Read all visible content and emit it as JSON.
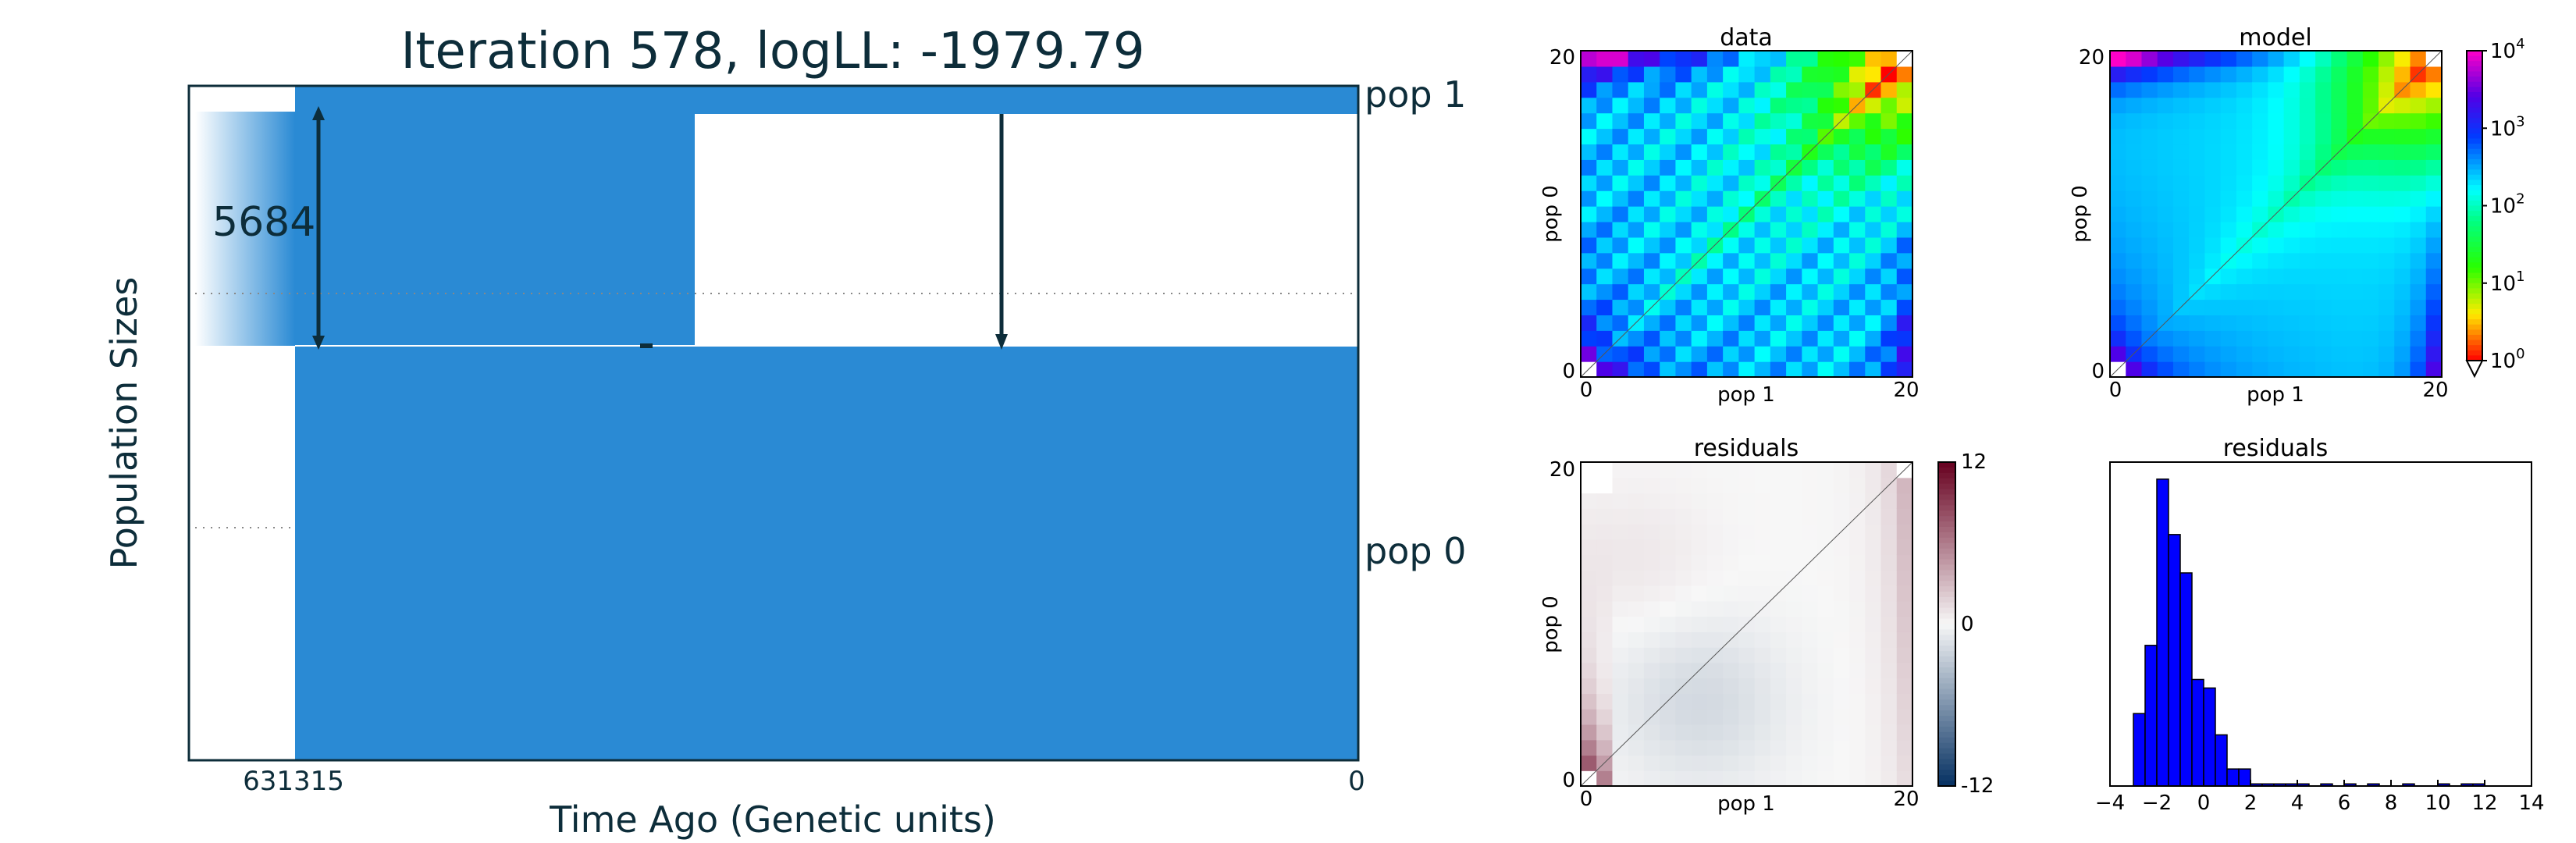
{
  "colors": {
    "pop_fill": "#2a8ad4",
    "arrow": "#0d2d3a",
    "text_dark": "#0d2d3a",
    "hist_bar": "#0000ff"
  },
  "chart_data": [
    {
      "type": "area",
      "title": "Iteration 578, logLL:   -1979.79",
      "xlabel": "Time Ago (Genetic units)",
      "ylabel": "Population Sizes",
      "x_ticks": [
        "631315",
        "0"
      ],
      "series": [
        {
          "name": "pop 1"
        },
        {
          "name": "pop 0"
        }
      ],
      "annotations": [
        "5684"
      ]
    },
    {
      "type": "heatmap",
      "title": "data",
      "xlabel": "pop 1",
      "ylabel": "pop 0",
      "x_ticks": [
        "0",
        "20"
      ],
      "y_ticks": [
        "0",
        "20"
      ],
      "grid_size": 21,
      "scale": "log",
      "colorbar_ticks": [
        {
          "base": "10",
          "exp": "0"
        },
        {
          "base": "10",
          "exp": "1"
        },
        {
          "base": "10",
          "exp": "2"
        },
        {
          "base": "10",
          "exp": "3"
        },
        {
          "base": "10",
          "exp": "4"
        }
      ]
    },
    {
      "type": "heatmap",
      "title": "model",
      "xlabel": "pop 1",
      "ylabel": "pop 0",
      "x_ticks": [
        "0",
        "20"
      ],
      "y_ticks": [
        "0",
        "20"
      ],
      "grid_size": 21,
      "scale": "log"
    },
    {
      "type": "heatmap",
      "title": "residuals",
      "xlabel": "pop 1",
      "ylabel": "pop 0",
      "x_ticks": [
        "0",
        "20"
      ],
      "y_ticks": [
        "0",
        "20"
      ],
      "grid_size": 21,
      "vlim": [
        -12,
        12
      ],
      "colorbar_ticks": [
        "12",
        "0",
        "-12"
      ]
    },
    {
      "type": "bar",
      "title": "residuals",
      "x_ticks": [
        "−4",
        "−2",
        "0",
        "2",
        "4",
        "6",
        "8",
        "10",
        "12",
        "14"
      ],
      "xlim": [
        -4,
        14
      ],
      "bin_width": 0.5,
      "bin_starts": [
        -3.0,
        -2.5,
        -2.0,
        -1.5,
        -1.0,
        -0.5,
        0.0,
        0.5,
        1.0,
        1.5,
        2.0,
        2.5,
        3.0,
        3.5,
        4.0,
        5.0,
        6.0,
        7.0,
        8.5,
        10.0,
        11.0,
        11.5
      ],
      "counts": [
        17,
        33,
        72,
        59,
        50,
        25,
        23,
        12,
        4,
        4,
        0.5,
        0.5,
        0.5,
        0.5,
        0.5,
        0.5,
        0.5,
        0.5,
        0.5,
        0.5,
        0.5,
        0.5
      ],
      "ylim": [
        0,
        76
      ]
    }
  ]
}
